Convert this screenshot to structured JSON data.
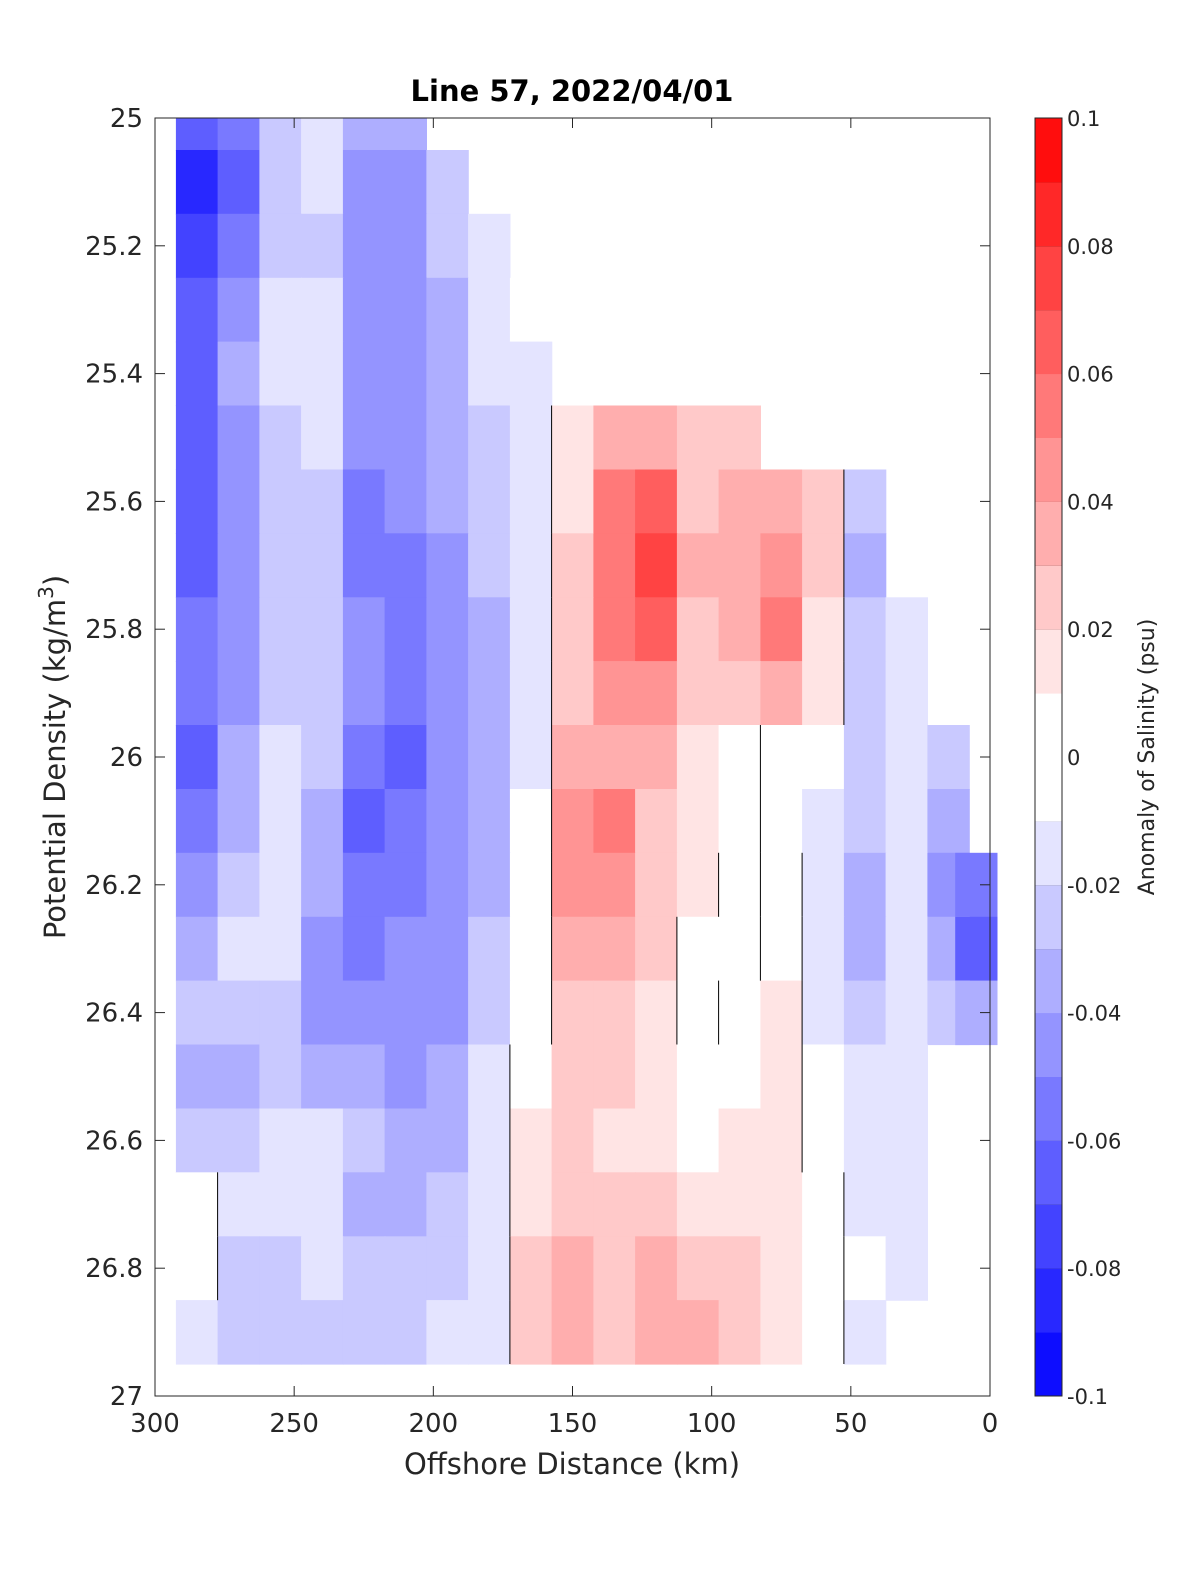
{
  "chart_data": {
    "type": "heatmap",
    "title": "Line 57, 2022/04/01",
    "xlabel": "Offshore Distance (km)",
    "ylabel_main": "Potential Density (kg/m",
    "ylabel_sup": "3",
    "ylabel_close": ")",
    "colorbar_label": "Anomaly of Salinity (psu)",
    "xlim": [
      300,
      0
    ],
    "ylim": [
      25,
      27
    ],
    "x_reversed": true,
    "y_reversed": true,
    "x_ticks": [
      300,
      250,
      200,
      150,
      100,
      50,
      0
    ],
    "x_tick_labels": [
      "300",
      "250",
      "200",
      "150",
      "100",
      "50",
      "0"
    ],
    "y_ticks": [
      25,
      25.2,
      25.4,
      25.6,
      25.8,
      26,
      26.2,
      26.4,
      26.6,
      26.8,
      27
    ],
    "y_tick_labels": [
      "25",
      "25.2",
      "25.4",
      "25.6",
      "25.8",
      "26",
      "26.2",
      "26.4",
      "26.6",
      "26.8",
      "27"
    ],
    "colorbar_range": [
      -0.1,
      0.1
    ],
    "colorbar_ticks": [
      0.1,
      0.08,
      0.06,
      0.04,
      0.02,
      0,
      -0.02,
      -0.04,
      -0.06,
      -0.08,
      -0.1
    ],
    "colorbar_tick_labels": [
      "0.1",
      "0.08",
      "0.06",
      "0.04",
      "0.02",
      "0",
      "-0.02",
      "-0.04",
      "-0.06",
      "-0.08",
      "-0.1"
    ],
    "contour_levels": [
      -0.1,
      -0.09,
      -0.08,
      -0.07,
      -0.06,
      -0.05,
      -0.04,
      -0.03,
      -0.02,
      -0.01,
      0.01,
      0.02,
      0.03,
      0.04,
      0.05,
      0.06,
      0.07,
      0.08,
      0.09,
      0.1
    ],
    "zero_contour_color": "#000000",
    "colors": {
      "positive_max": "#ff0000",
      "negative_max": "#0000ff",
      "neutral": "#ffffff"
    },
    "data_x": [
      285,
      270,
      255,
      240,
      225,
      210,
      195,
      180,
      165,
      150,
      135,
      120,
      105,
      90,
      75,
      60,
      45,
      30,
      15,
      5
    ],
    "data_y": [
      25.0,
      25.1,
      25.2,
      25.3,
      25.4,
      25.5,
      25.6,
      25.7,
      25.8,
      25.9,
      26.0,
      26.1,
      26.2,
      26.3,
      26.4,
      26.5,
      26.6,
      26.7,
      26.8,
      26.9
    ],
    "z": [
      [
        -0.07,
        -0.06,
        -0.03,
        -0.02,
        -0.04,
        -0.04,
        null,
        null,
        null,
        null,
        null,
        null,
        null,
        null,
        null,
        null,
        null,
        null,
        null,
        null
      ],
      [
        -0.085,
        -0.07,
        -0.03,
        -0.02,
        -0.045,
        -0.045,
        -0.03,
        null,
        null,
        null,
        null,
        null,
        null,
        null,
        null,
        null,
        null,
        null,
        null,
        null
      ],
      [
        -0.075,
        -0.06,
        -0.025,
        -0.025,
        -0.05,
        -0.045,
        -0.03,
        -0.02,
        null,
        null,
        null,
        null,
        null,
        null,
        null,
        null,
        null,
        null,
        null,
        null
      ],
      [
        -0.07,
        -0.05,
        -0.02,
        -0.02,
        -0.05,
        -0.045,
        -0.035,
        -0.02,
        -0.005,
        null,
        null,
        null,
        null,
        null,
        null,
        null,
        null,
        null,
        null,
        null
      ],
      [
        -0.065,
        -0.04,
        -0.02,
        -0.015,
        -0.045,
        -0.045,
        -0.035,
        -0.02,
        -0.015,
        null,
        null,
        null,
        null,
        null,
        null,
        null,
        null,
        null,
        null,
        null
      ],
      [
        -0.065,
        -0.045,
        -0.025,
        -0.02,
        -0.05,
        -0.05,
        -0.04,
        -0.03,
        -0.02,
        0.01,
        0.035,
        0.03,
        0.02,
        0.025,
        null,
        null,
        null,
        null,
        null,
        null
      ],
      [
        -0.07,
        -0.05,
        -0.03,
        -0.025,
        -0.055,
        -0.05,
        -0.04,
        -0.03,
        -0.02,
        0.015,
        0.05,
        0.06,
        0.02,
        0.03,
        0.035,
        0.025,
        -0.03,
        null,
        null,
        null
      ],
      [
        -0.065,
        -0.05,
        -0.03,
        -0.03,
        -0.055,
        -0.055,
        -0.045,
        -0.03,
        -0.02,
        0.02,
        0.055,
        0.075,
        0.03,
        0.035,
        0.045,
        0.02,
        -0.035,
        null,
        null,
        null
      ],
      [
        -0.06,
        -0.045,
        -0.025,
        -0.025,
        -0.05,
        -0.055,
        -0.045,
        -0.035,
        -0.015,
        0.02,
        0.05,
        0.06,
        0.025,
        0.035,
        0.05,
        0.015,
        -0.03,
        -0.02,
        null,
        null
      ],
      [
        -0.06,
        -0.045,
        -0.025,
        -0.025,
        -0.05,
        -0.06,
        -0.05,
        -0.035,
        -0.015,
        0.025,
        0.04,
        0.04,
        0.02,
        0.025,
        0.03,
        0.01,
        -0.025,
        -0.02,
        null,
        null
      ],
      [
        -0.065,
        -0.04,
        -0.02,
        -0.03,
        -0.055,
        -0.065,
        -0.05,
        -0.035,
        -0.015,
        0.035,
        0.03,
        0.03,
        0.015,
        0.005,
        -0.005,
        -0.005,
        -0.025,
        -0.02,
        -0.03,
        null
      ],
      [
        -0.06,
        -0.035,
        -0.015,
        -0.035,
        -0.065,
        -0.06,
        -0.05,
        -0.035,
        -0.01,
        0.045,
        0.05,
        0.025,
        0.015,
        0.005,
        -0.005,
        -0.015,
        -0.03,
        -0.02,
        -0.04,
        null
      ],
      [
        -0.05,
        -0.03,
        -0.015,
        -0.04,
        -0.06,
        -0.055,
        -0.05,
        -0.035,
        -0.01,
        0.04,
        0.045,
        0.025,
        0.01,
        -0.005,
        0.005,
        -0.02,
        -0.035,
        -0.02,
        -0.05,
        -0.06
      ],
      [
        -0.035,
        -0.02,
        -0.02,
        -0.045,
        -0.055,
        -0.05,
        -0.045,
        -0.03,
        -0.01,
        0.03,
        0.035,
        0.02,
        -0.005,
        -0.005,
        0.005,
        -0.02,
        -0.035,
        -0.02,
        -0.04,
        -0.065
      ],
      [
        -0.03,
        -0.025,
        -0.025,
        -0.045,
        -0.05,
        -0.05,
        -0.045,
        -0.025,
        -0.005,
        0.025,
        0.025,
        0.015,
        -0.005,
        0.005,
        0.01,
        -0.015,
        -0.025,
        -0.02,
        -0.03,
        -0.04
      ],
      [
        -0.04,
        -0.035,
        -0.03,
        -0.035,
        -0.04,
        -0.045,
        -0.04,
        -0.02,
        0.005,
        0.02,
        0.02,
        0.01,
        0.005,
        0.005,
        0.01,
        -0.01,
        -0.02,
        -0.02,
        null,
        null
      ],
      [
        -0.03,
        -0.025,
        -0.02,
        -0.015,
        -0.03,
        -0.04,
        -0.035,
        -0.02,
        0.01,
        0.02,
        0.015,
        0.01,
        0.005,
        0.015,
        0.01,
        -0.005,
        -0.02,
        -0.02,
        null,
        null
      ],
      [
        0.0,
        -0.02,
        -0.015,
        -0.02,
        -0.035,
        -0.04,
        -0.03,
        -0.02,
        0.01,
        0.025,
        0.02,
        0.02,
        0.015,
        0.015,
        0.01,
        0.005,
        -0.015,
        -0.02,
        null,
        null
      ],
      [
        0.005,
        -0.025,
        -0.025,
        -0.02,
        -0.03,
        -0.03,
        -0.025,
        -0.02,
        0.02,
        0.03,
        0.025,
        0.03,
        0.025,
        0.02,
        0.015,
        0.005,
        -0.01,
        -0.02,
        null,
        null
      ],
      [
        -0.02,
        -0.03,
        -0.03,
        -0.025,
        -0.03,
        -0.025,
        -0.02,
        -0.015,
        0.02,
        0.03,
        0.025,
        0.035,
        0.03,
        0.02,
        0.015,
        0.005,
        -0.015,
        null,
        null,
        null
      ]
    ]
  }
}
